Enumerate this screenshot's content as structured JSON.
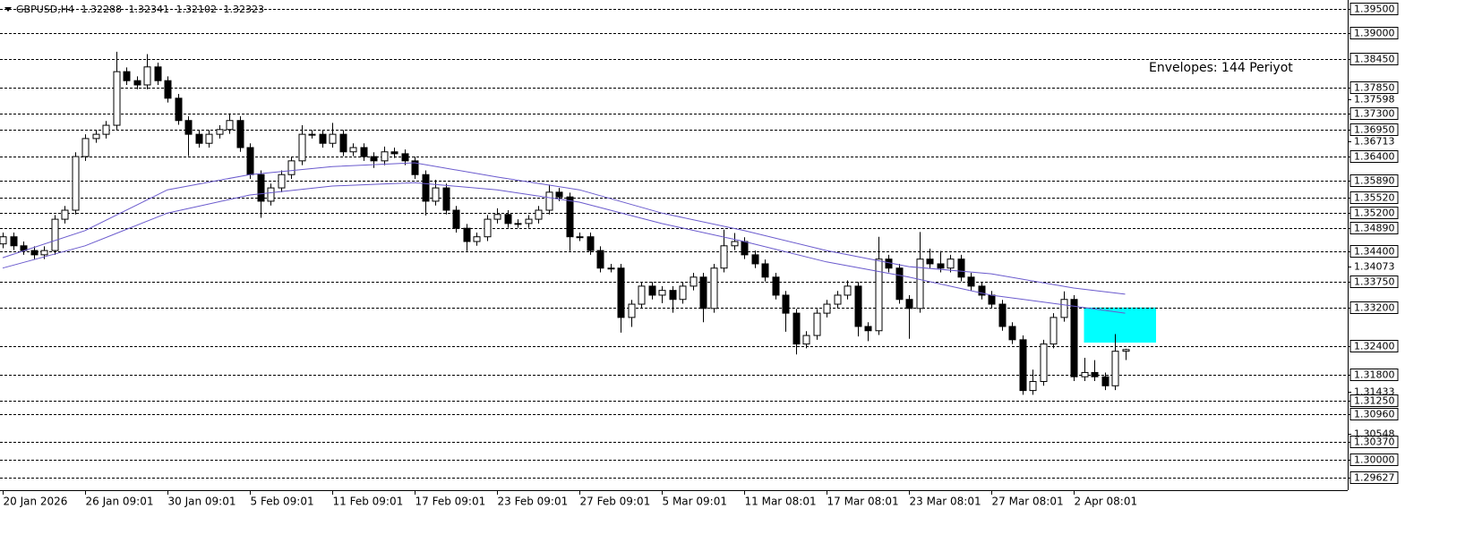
{
  "chart_data": {
    "type": "candlestick",
    "title": "GBPUSD,H4",
    "categories": [
      "20 Jan 2026",
      null,
      null,
      null,
      null,
      null,
      null,
      null,
      "26 Jan 09:01",
      null,
      null,
      null,
      null,
      null,
      null,
      null,
      "30 Jan 09:01",
      null,
      null,
      null,
      null,
      null,
      null,
      null,
      "5 Feb 09:01",
      null,
      null,
      null,
      null,
      null,
      null,
      null,
      "11 Feb 09:01",
      null,
      null,
      null,
      null,
      null,
      null,
      null,
      "17 Feb 09:01",
      null,
      null,
      null,
      null,
      null,
      null,
      null,
      "23 Feb 09:01",
      null,
      null,
      null,
      null,
      null,
      null,
      null,
      "27 Feb 09:01",
      null,
      null,
      null,
      null,
      null,
      null,
      null,
      "5 Mar 09:01",
      null,
      null,
      null,
      null,
      null,
      null,
      null,
      "11 Mar 08:01",
      null,
      null,
      null,
      null,
      null,
      null,
      null,
      "17 Mar 08:01",
      null,
      null,
      null,
      null,
      null,
      null,
      null,
      "23 Mar 08:01",
      null,
      null,
      null,
      null,
      null,
      null,
      null,
      "27 Mar 08:01",
      null,
      null,
      null,
      null,
      null,
      null,
      null,
      "2 Apr 08:01",
      null,
      null,
      null,
      null,
      null
    ],
    "open": [
      1.3455,
      1.347,
      1.3451,
      1.3441,
      1.3432,
      1.3441,
      1.3507,
      1.3526,
      1.3639,
      1.3677,
      1.3686,
      1.3705,
      1.3818,
      1.3799,
      1.379,
      1.3828,
      1.3799,
      1.3762,
      1.3715,
      1.3686,
      1.3667,
      1.3686,
      1.3696,
      1.3715,
      1.3658,
      1.3601,
      1.3545,
      1.3573,
      1.3601,
      1.363,
      1.3686,
      1.3686,
      1.3667,
      1.3686,
      1.3649,
      1.3658,
      1.3639,
      1.363,
      1.3649,
      1.3645,
      1.363,
      1.3601,
      1.3545,
      1.3573,
      1.3526,
      1.3488,
      1.346,
      1.347,
      1.3507,
      1.3517,
      1.3498,
      1.3498,
      1.3507,
      1.3526,
      1.3564,
      1.3554,
      1.347,
      1.347,
      1.3441,
      1.3404,
      1.3404,
      1.33,
      1.3328,
      1.3366,
      1.3347,
      1.3357,
      1.3338,
      1.3366,
      1.3385,
      1.3319,
      1.3404,
      1.3451,
      1.346,
      1.3432,
      1.3413,
      1.3385,
      1.3347,
      1.3309,
      1.3244,
      1.3262,
      1.3309,
      1.3328,
      1.3347,
      1.3366,
      1.3281,
      1.3272,
      1.3423,
      1.3404,
      1.3338,
      1.3319,
      1.3423,
      1.3413,
      1.3404,
      1.3423,
      1.3385,
      1.3366,
      1.3347,
      1.3328,
      1.3281,
      1.3253,
      1.3146,
      1.3165,
      1.3244,
      1.33,
      1.3338,
      1.3175,
      1.3184,
      1.3175,
      1.3156,
      1.32288
    ],
    "high": [
      1.3479,
      1.3479,
      1.346,
      1.345,
      1.345,
      1.3516,
      1.3535,
      1.3648,
      1.3686,
      1.3695,
      1.3714,
      1.386,
      1.3827,
      1.3808,
      1.3855,
      1.3837,
      1.3808,
      1.3771,
      1.3724,
      1.3695,
      1.3695,
      1.3705,
      1.373,
      1.3724,
      1.3667,
      1.361,
      1.3582,
      1.361,
      1.3639,
      1.3705,
      1.3695,
      1.3695,
      1.371,
      1.3695,
      1.3667,
      1.3667,
      1.3648,
      1.366,
      1.3658,
      1.3654,
      1.3639,
      1.361,
      1.359,
      1.3582,
      1.3535,
      1.3497,
      1.3479,
      1.3516,
      1.353,
      1.3526,
      1.3507,
      1.3516,
      1.3535,
      1.358,
      1.3573,
      1.3563,
      1.3479,
      1.3479,
      1.345,
      1.3413,
      1.3413,
      1.3337,
      1.3375,
      1.3375,
      1.3366,
      1.3366,
      1.3375,
      1.3394,
      1.3394,
      1.3413,
      1.3485,
      1.3478,
      1.3469,
      1.3441,
      1.3422,
      1.3394,
      1.3356,
      1.3318,
      1.3271,
      1.3318,
      1.3337,
      1.3356,
      1.3378,
      1.3375,
      1.329,
      1.347,
      1.3432,
      1.3413,
      1.3347,
      1.348,
      1.3445,
      1.344,
      1.3432,
      1.3432,
      1.3394,
      1.3375,
      1.3356,
      1.3337,
      1.329,
      1.3262,
      1.319,
      1.3253,
      1.3309,
      1.3355,
      1.3347,
      1.3215,
      1.321,
      1.3184,
      1.3265,
      1.32341
    ],
    "low": [
      1.3446,
      1.3442,
      1.3432,
      1.3423,
      1.3423,
      1.3432,
      1.3498,
      1.3517,
      1.363,
      1.3668,
      1.3677,
      1.3696,
      1.379,
      1.3781,
      1.3781,
      1.379,
      1.3753,
      1.3706,
      1.364,
      1.3658,
      1.3658,
      1.3677,
      1.3687,
      1.3649,
      1.3592,
      1.351,
      1.3536,
      1.3564,
      1.3592,
      1.3621,
      1.3677,
      1.3658,
      1.3658,
      1.364,
      1.364,
      1.363,
      1.3615,
      1.3621,
      1.3636,
      1.3621,
      1.3592,
      1.3515,
      1.3536,
      1.3517,
      1.3479,
      1.344,
      1.3451,
      1.3461,
      1.3498,
      1.3489,
      1.3489,
      1.3489,
      1.3498,
      1.3517,
      1.3545,
      1.344,
      1.3461,
      1.3432,
      1.3395,
      1.3395,
      1.3268,
      1.328,
      1.3319,
      1.3338,
      1.333,
      1.331,
      1.3329,
      1.3357,
      1.329,
      1.331,
      1.3395,
      1.3442,
      1.3423,
      1.3404,
      1.3376,
      1.3338,
      1.327,
      1.3222,
      1.3235,
      1.3253,
      1.33,
      1.3319,
      1.3338,
      1.326,
      1.325,
      1.3263,
      1.3395,
      1.3329,
      1.3255,
      1.331,
      1.3404,
      1.3395,
      1.3395,
      1.3376,
      1.3357,
      1.3338,
      1.3319,
      1.3272,
      1.3244,
      1.3137,
      1.3137,
      1.3156,
      1.3235,
      1.3291,
      1.3166,
      1.3166,
      1.3166,
      1.3147,
      1.3147,
      1.32102
    ],
    "close": [
      1.347,
      1.3451,
      1.3441,
      1.3432,
      1.3441,
      1.3507,
      1.3526,
      1.3639,
      1.3677,
      1.3686,
      1.3705,
      1.3818,
      1.3799,
      1.379,
      1.3828,
      1.3799,
      1.3762,
      1.3715,
      1.3686,
      1.3667,
      1.3686,
      1.3696,
      1.3715,
      1.3658,
      1.3601,
      1.3545,
      1.3573,
      1.3601,
      1.363,
      1.3686,
      1.3686,
      1.3667,
      1.3686,
      1.3649,
      1.3658,
      1.3639,
      1.363,
      1.3649,
      1.3645,
      1.363,
      1.3601,
      1.3545,
      1.3573,
      1.3526,
      1.3488,
      1.346,
      1.347,
      1.3507,
      1.3517,
      1.3498,
      1.3498,
      1.3507,
      1.3526,
      1.3564,
      1.3554,
      1.347,
      1.347,
      1.3441,
      1.3404,
      1.3404,
      1.33,
      1.3328,
      1.3366,
      1.3347,
      1.3357,
      1.3338,
      1.3366,
      1.3385,
      1.3319,
      1.3404,
      1.3451,
      1.346,
      1.3432,
      1.3413,
      1.3385,
      1.3347,
      1.3309,
      1.3244,
      1.3262,
      1.3309,
      1.3328,
      1.3347,
      1.3366,
      1.3281,
      1.3272,
      1.3423,
      1.3404,
      1.3338,
      1.3319,
      1.3423,
      1.3413,
      1.3404,
      1.3423,
      1.3385,
      1.3366,
      1.3347,
      1.3328,
      1.3281,
      1.3253,
      1.3146,
      1.3165,
      1.3244,
      1.33,
      1.3338,
      1.3175,
      1.3184,
      1.3175,
      1.3156,
      1.32288,
      1.32323
    ],
    "bull_color": "#ffffff",
    "bear_color": "#000000",
    "candle_outline": "#000000",
    "envelopes": {
      "label": "Envelopes: 144 Periyot",
      "color": "#6a5acd",
      "x": [
        0,
        8,
        16,
        24,
        32,
        40,
        48,
        56,
        64,
        72,
        80,
        88,
        96,
        104,
        109
      ],
      "upper": [
        1.3426,
        1.3483,
        1.3569,
        1.3601,
        1.3618,
        1.3626,
        1.3596,
        1.3569,
        1.352,
        1.3483,
        1.3441,
        1.3407,
        1.3392,
        1.3362,
        1.3349
      ],
      "lower": [
        1.3404,
        1.3451,
        1.352,
        1.3558,
        1.3577,
        1.3584,
        1.3569,
        1.3543,
        1.3498,
        1.346,
        1.3417,
        1.3385,
        1.3347,
        1.3324,
        1.3309
      ]
    },
    "zones": [
      {
        "color": "#00ffff",
        "xlim": [
          105,
          112
        ],
        "ylim": [
          1.3247,
          1.3321
        ]
      }
    ],
    "ylim": [
      1.2936,
      1.3969
    ],
    "levels": [
      {
        "value": 1.395,
        "label": "1.39500"
      },
      {
        "value": 1.39,
        "label": "1.39000"
      },
      {
        "value": 1.3845,
        "label": "1.38450"
      },
      {
        "value": 1.3785,
        "label": "1.37850"
      },
      {
        "value": 1.373,
        "label": "1.37300"
      },
      {
        "value": 1.3695,
        "label": "1.36950"
      },
      {
        "value": 1.364,
        "label": "1.36400"
      },
      {
        "value": 1.3589,
        "label": "1.35890"
      },
      {
        "value": 1.3552,
        "label": "1.35520"
      },
      {
        "value": 1.352,
        "label": "1.35200"
      },
      {
        "value": 1.3489,
        "label": "1.34890"
      },
      {
        "value": 1.344,
        "label": "1.34400"
      },
      {
        "value": 1.3375,
        "label": "1.33750"
      },
      {
        "value": 1.332,
        "label": "1.33200"
      },
      {
        "value": 1.324,
        "label": "1.32400"
      },
      {
        "value": 1.318,
        "label": "1.31800"
      },
      {
        "value": 1.3125,
        "label": "1.31250"
      },
      {
        "value": 1.3096,
        "label": "1.30960"
      },
      {
        "value": 1.3037,
        "label": "1.30370"
      },
      {
        "value": 1.3,
        "label": "1.30000"
      },
      1.29627
    ],
    "yticks": [
      1.37598,
      1.36713,
      1.34073,
      1.31433,
      1.30548
    ],
    "level_style": "dashed"
  }
}
